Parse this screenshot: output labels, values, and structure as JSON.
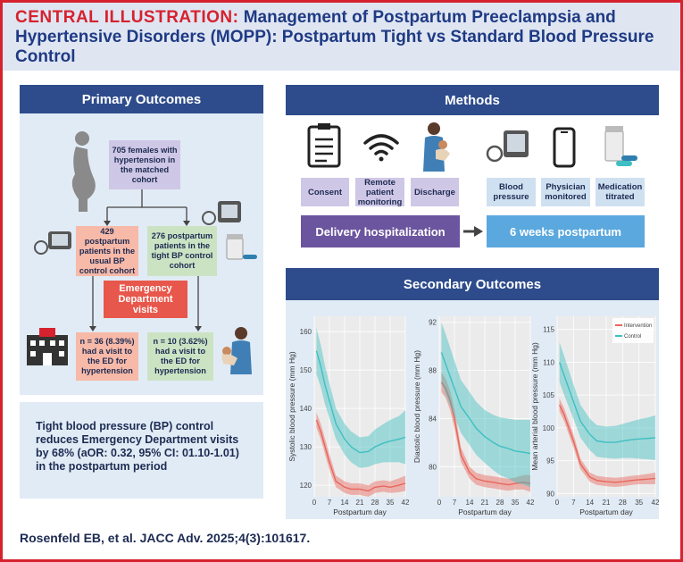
{
  "header": {
    "prefix": "CENTRAL ILLUSTRATION:",
    "line1": "Management of Postpartum Preeclampsia and",
    "line2": "Hypertensive Disorders (MOPP): Postpartum Tight vs Standard Blood Pressure",
    "line3": "Control"
  },
  "primary": {
    "title": "Primary Outcomes",
    "cohort": "705 females with hypertension in the matched cohort",
    "usual": "429 postpartum patients in the usual BP control cohort",
    "tight": "276 postpartum patients in the tight BP control cohort",
    "ed": "Emergency Department visits",
    "usual_result": "n = 36 (8.39%) had a visit to the ED for hypertension",
    "tight_result": "n = 10 (3.62%) had a visit to the ED for hypertension"
  },
  "summary": "Tight blood pressure (BP) control reduces Emergency Department visits by 68% (aOR: 0.32, 95% CI: 01.10-1.01) in the postpartum period",
  "methods": {
    "title": "Methods",
    "items": [
      "Consent",
      "Remote patient monitoring",
      "Discharge",
      "Blood pressure",
      "Physician monitored",
      "Medication titrated"
    ],
    "phase1": "Delivery hospitalization",
    "phase2": "6 weeks postpartum"
  },
  "secondary": {
    "title": "Secondary Outcomes"
  },
  "colors": {
    "intervention": "#e8655c",
    "control": "#3fbfc2",
    "navy": "#2e4c8c"
  },
  "chart_data": [
    {
      "type": "line",
      "ylabel": "Systolic blood pressure (mm Hg)",
      "xlabel": "Postpartum day",
      "x_ticks": [
        0,
        7,
        14,
        21,
        28,
        35,
        42
      ],
      "y_ticks": [
        120,
        130,
        140,
        150,
        160
      ],
      "xlim": [
        0,
        42
      ],
      "ylim": [
        117,
        164
      ],
      "x": [
        1,
        3,
        5,
        7,
        10,
        14,
        17,
        21,
        25,
        28,
        32,
        35,
        39,
        42
      ],
      "series": [
        {
          "name": "Intervention",
          "values": [
            137,
            134,
            130,
            126,
            121,
            119.5,
            119,
            119,
            118.5,
            119.5,
            119.8,
            119.5,
            120,
            120.5
          ],
          "band": [
            2,
            2,
            2,
            2,
            1.5,
            1.5,
            1.5,
            1.5,
            1.5,
            1.5,
            1.5,
            1.5,
            1.8,
            2
          ]
        },
        {
          "name": "Control",
          "values": [
            155,
            151,
            146,
            142,
            136,
            132,
            130,
            128.5,
            128.8,
            130,
            131,
            131.5,
            132,
            132.5
          ],
          "band": [
            6,
            5.5,
            5,
            4.5,
            4,
            4,
            4,
            4,
            4,
            4.5,
            5,
            5.5,
            6,
            7
          ]
        }
      ]
    },
    {
      "type": "line",
      "ylabel": "Diastolic blood pressure (mm Hg)",
      "xlabel": "Postpartum day",
      "x_ticks": [
        0,
        7,
        14,
        21,
        28,
        35,
        42
      ],
      "y_ticks": [
        80,
        84,
        88,
        92
      ],
      "xlim": [
        0,
        42
      ],
      "ylim": [
        77.5,
        92.5
      ],
      "x": [
        1,
        3,
        5,
        7,
        10,
        14,
        17,
        21,
        25,
        28,
        32,
        35,
        39,
        42
      ],
      "series": [
        {
          "name": "Intervention",
          "values": [
            87,
            86.5,
            85.5,
            84,
            81,
            79.5,
            79,
            78.8,
            78.7,
            78.6,
            78.5,
            78.6,
            78.7,
            78.6
          ],
          "band": [
            0.8,
            0.8,
            0.8,
            0.8,
            0.6,
            0.5,
            0.5,
            0.5,
            0.5,
            0.5,
            0.5,
            0.5,
            0.6,
            0.7
          ]
        },
        {
          "name": "Control",
          "values": [
            89.5,
            88.5,
            87.5,
            86.5,
            85,
            84,
            83.2,
            82.5,
            82,
            81.7,
            81.5,
            81.3,
            81.2,
            81.1
          ],
          "band": [
            2.5,
            2.5,
            2.4,
            2.3,
            2.2,
            2.2,
            2.2,
            2.2,
            2.3,
            2.4,
            2.5,
            2.6,
            2.7,
            2.8
          ]
        }
      ]
    },
    {
      "type": "line",
      "ylabel": "Mean arterial blood pressure (mm Hg)",
      "xlabel": "Postpartum day",
      "x_ticks": [
        0,
        7,
        14,
        21,
        28,
        35,
        42
      ],
      "y_ticks": [
        90,
        95,
        100,
        105,
        110,
        115
      ],
      "xlim": [
        0,
        42
      ],
      "ylim": [
        89.5,
        117
      ],
      "x": [
        1,
        3,
        5,
        7,
        10,
        14,
        17,
        21,
        25,
        28,
        32,
        35,
        39,
        42
      ],
      "series": [
        {
          "name": "Intervention",
          "values": [
            103.5,
            102,
            100,
            98,
            94.5,
            92.5,
            92,
            91.8,
            91.7,
            91.8,
            92,
            92.1,
            92.2,
            92.3
          ],
          "band": [
            1,
            1,
            1,
            1,
            0.8,
            0.7,
            0.7,
            0.7,
            0.7,
            0.7,
            0.7,
            0.7,
            0.8,
            0.9
          ]
        },
        {
          "name": "Control",
          "values": [
            110,
            108,
            106,
            104,
            101,
            99,
            98,
            97.8,
            97.8,
            98,
            98.2,
            98.3,
            98.4,
            98.5
          ],
          "band": [
            3,
            3,
            2.8,
            2.6,
            2.5,
            2.4,
            2.4,
            2.4,
            2.5,
            2.6,
            2.8,
            3,
            3.2,
            3.4
          ]
        }
      ],
      "legend": [
        "Intervention",
        "Control"
      ]
    }
  ],
  "citation": "Rosenfeld EB, et al. JACC Adv. 2025;4(3):101617."
}
